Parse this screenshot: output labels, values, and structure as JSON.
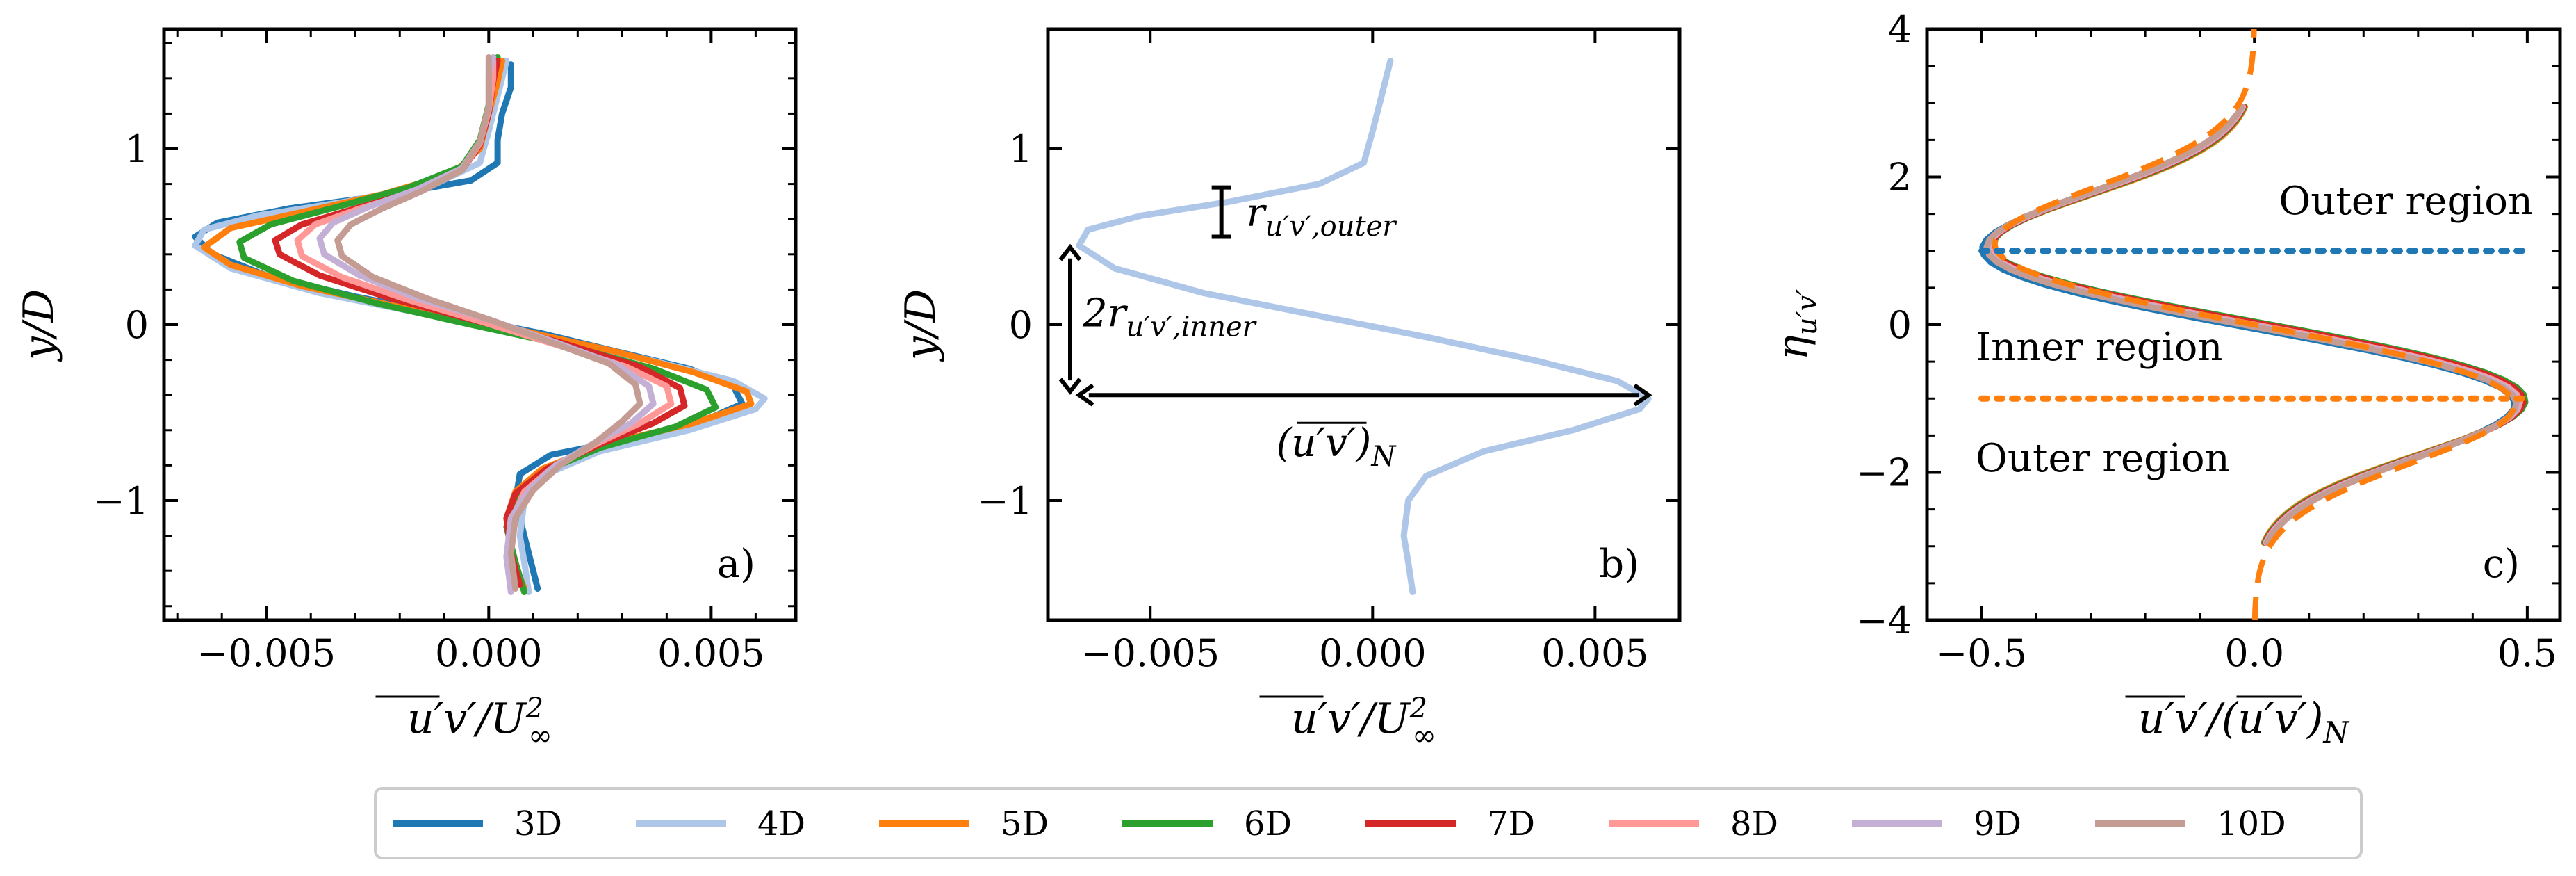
{
  "chart_data": [
    {
      "type": "line",
      "panel_label": "a)",
      "xlabel": "u'v' / U∞²",
      "ylabel": "y/D",
      "xlim": [
        -0.0073,
        0.0069
      ],
      "ylim": [
        -1.68,
        1.68
      ],
      "xticks": [
        -0.005,
        0.0,
        0.005
      ],
      "xtick_labels": [
        "−0.005",
        "0.000",
        "0.005"
      ],
      "yticks": [
        -1,
        0,
        1
      ],
      "ytick_labels": [
        "−1",
        "0",
        "1"
      ],
      "grid": false,
      "legend": "bottom-outside",
      "series": [
        {
          "name": "3D",
          "color": "#1f77b4",
          "points": [
            [
              0.0011,
              -1.5
            ],
            [
              0.0009,
              -1.3
            ],
            [
              0.0006,
              -1.0
            ],
            [
              0.0007,
              -0.85
            ],
            [
              0.0014,
              -0.74
            ],
            [
              0.0032,
              -0.65
            ],
            [
              0.0048,
              -0.55
            ],
            [
              0.0057,
              -0.45
            ],
            [
              0.0055,
              -0.35
            ],
            [
              0.0045,
              -0.25
            ],
            [
              0.003,
              -0.16
            ],
            [
              0.0012,
              -0.05
            ],
            [
              -0.0008,
              0.05
            ],
            [
              -0.003,
              0.16
            ],
            [
              -0.005,
              0.28
            ],
            [
              -0.0062,
              0.4
            ],
            [
              -0.0066,
              0.5
            ],
            [
              -0.0061,
              0.58
            ],
            [
              -0.0045,
              0.66
            ],
            [
              -0.0022,
              0.74
            ],
            [
              -0.0004,
              0.82
            ],
            [
              0.0002,
              0.92
            ],
            [
              0.0002,
              1.05
            ],
            [
              0.0003,
              1.2
            ],
            [
              0.0005,
              1.35
            ],
            [
              0.0005,
              1.48
            ]
          ]
        },
        {
          "name": "4D",
          "color": "#aec7e8",
          "points": [
            [
              0.0009,
              -1.52
            ],
            [
              0.0008,
              -1.35
            ],
            [
              0.0007,
              -1.2
            ],
            [
              0.0008,
              -1.0
            ],
            [
              0.0012,
              -0.86
            ],
            [
              0.0025,
              -0.72
            ],
            [
              0.0045,
              -0.6
            ],
            [
              0.006,
              -0.48
            ],
            [
              0.0062,
              -0.42
            ],
            [
              0.0055,
              -0.32
            ],
            [
              0.0036,
              -0.2
            ],
            [
              0.0012,
              -0.07
            ],
            [
              -0.0012,
              0.05
            ],
            [
              -0.0038,
              0.18
            ],
            [
              -0.0058,
              0.32
            ],
            [
              -0.0066,
              0.45
            ],
            [
              -0.0064,
              0.54
            ],
            [
              -0.0052,
              0.62
            ],
            [
              -0.0032,
              0.7
            ],
            [
              -0.0012,
              0.8
            ],
            [
              -0.0002,
              0.92
            ],
            [
              0.0,
              1.1
            ],
            [
              0.0002,
              1.3
            ],
            [
              0.0004,
              1.5
            ]
          ]
        },
        {
          "name": "5D",
          "color": "#ff7f0e",
          "points": [
            [
              0.0008,
              -1.5
            ],
            [
              0.0005,
              -1.3
            ],
            [
              0.0004,
              -1.1
            ],
            [
              0.0006,
              -0.95
            ],
            [
              0.0012,
              -0.82
            ],
            [
              0.0026,
              -0.68
            ],
            [
              0.0046,
              -0.56
            ],
            [
              0.0059,
              -0.45
            ],
            [
              0.0058,
              -0.38
            ],
            [
              0.0046,
              -0.27
            ],
            [
              0.0028,
              -0.15
            ],
            [
              0.0005,
              -0.02
            ],
            [
              -0.002,
              0.1
            ],
            [
              -0.0042,
              0.22
            ],
            [
              -0.0058,
              0.34
            ],
            [
              -0.0064,
              0.44
            ],
            [
              -0.0058,
              0.55
            ],
            [
              -0.0042,
              0.64
            ],
            [
              -0.0024,
              0.74
            ],
            [
              -0.0008,
              0.86
            ],
            [
              -0.0002,
              1.0
            ],
            [
              0.0,
              1.2
            ],
            [
              0.0002,
              1.38
            ],
            [
              0.0003,
              1.5
            ]
          ]
        },
        {
          "name": "6D",
          "color": "#2ca02c",
          "points": [
            [
              0.0008,
              -1.52
            ],
            [
              0.0006,
              -1.35
            ],
            [
              0.0004,
              -1.15
            ],
            [
              0.0006,
              -0.98
            ],
            [
              0.0012,
              -0.84
            ],
            [
              0.0025,
              -0.7
            ],
            [
              0.0042,
              -0.58
            ],
            [
              0.0051,
              -0.47
            ],
            [
              0.0049,
              -0.37
            ],
            [
              0.0037,
              -0.25
            ],
            [
              0.0018,
              -0.12
            ],
            [
              -0.0004,
              0.0
            ],
            [
              -0.0025,
              0.12
            ],
            [
              -0.0044,
              0.25
            ],
            [
              -0.0055,
              0.38
            ],
            [
              -0.0056,
              0.47
            ],
            [
              -0.0049,
              0.57
            ],
            [
              -0.0034,
              0.67
            ],
            [
              -0.0018,
              0.78
            ],
            [
              -0.0006,
              0.9
            ],
            [
              -0.0002,
              1.05
            ],
            [
              0.0,
              1.25
            ],
            [
              0.0001,
              1.42
            ],
            [
              0.0002,
              1.52
            ]
          ]
        },
        {
          "name": "7D",
          "color": "#d62728",
          "points": [
            [
              0.0007,
              -1.48
            ],
            [
              0.0005,
              -1.3
            ],
            [
              0.0004,
              -1.1
            ],
            [
              0.0006,
              -0.96
            ],
            [
              0.0013,
              -0.82
            ],
            [
              0.0025,
              -0.68
            ],
            [
              0.0037,
              -0.56
            ],
            [
              0.0044,
              -0.46
            ],
            [
              0.0043,
              -0.36
            ],
            [
              0.0034,
              -0.24
            ],
            [
              0.0016,
              -0.1
            ],
            [
              -0.0004,
              0.03
            ],
            [
              -0.0022,
              0.15
            ],
            [
              -0.0038,
              0.28
            ],
            [
              -0.0047,
              0.4
            ],
            [
              -0.0048,
              0.48
            ],
            [
              -0.0042,
              0.57
            ],
            [
              -0.003,
              0.66
            ],
            [
              -0.0016,
              0.76
            ],
            [
              -0.0006,
              0.88
            ],
            [
              -0.0002,
              1.02
            ],
            [
              0.0,
              1.2
            ],
            [
              0.0001,
              1.38
            ],
            [
              0.0002,
              1.5
            ]
          ]
        },
        {
          "name": "8D",
          "color": "#ff9896",
          "points": [
            [
              0.0005,
              -1.5
            ],
            [
              0.0004,
              -1.32
            ],
            [
              0.0005,
              -1.12
            ],
            [
              0.0008,
              -0.95
            ],
            [
              0.0014,
              -0.82
            ],
            [
              0.0024,
              -0.68
            ],
            [
              0.0034,
              -0.56
            ],
            [
              0.0041,
              -0.45
            ],
            [
              0.004,
              -0.35
            ],
            [
              0.0031,
              -0.24
            ],
            [
              0.0016,
              -0.12
            ],
            [
              -0.0002,
              0.02
            ],
            [
              -0.0018,
              0.14
            ],
            [
              -0.0033,
              0.27
            ],
            [
              -0.0042,
              0.39
            ],
            [
              -0.0043,
              0.48
            ],
            [
              -0.0039,
              0.57
            ],
            [
              -0.0029,
              0.66
            ],
            [
              -0.0016,
              0.76
            ],
            [
              -0.0006,
              0.88
            ],
            [
              -0.0002,
              1.03
            ],
            [
              0.0,
              1.22
            ],
            [
              0.0001,
              1.4
            ],
            [
              0.0001,
              1.5
            ]
          ]
        },
        {
          "name": "9D",
          "color": "#c5b0d5",
          "points": [
            [
              0.0005,
              -1.52
            ],
            [
              0.0004,
              -1.32
            ],
            [
              0.0005,
              -1.1
            ],
            [
              0.0009,
              -0.94
            ],
            [
              0.0015,
              -0.8
            ],
            [
              0.0024,
              -0.67
            ],
            [
              0.0032,
              -0.56
            ],
            [
              0.0037,
              -0.45
            ],
            [
              0.0036,
              -0.35
            ],
            [
              0.0029,
              -0.23
            ],
            [
              0.0015,
              -0.1
            ],
            [
              0.0,
              0.03
            ],
            [
              -0.0016,
              0.15
            ],
            [
              -0.0029,
              0.28
            ],
            [
              -0.0037,
              0.4
            ],
            [
              -0.0038,
              0.49
            ],
            [
              -0.0035,
              0.58
            ],
            [
              -0.0027,
              0.67
            ],
            [
              -0.0016,
              0.77
            ],
            [
              -0.0006,
              0.89
            ],
            [
              -0.0002,
              1.04
            ],
            [
              0.0,
              1.24
            ],
            [
              0.0,
              1.42
            ],
            [
              0.0001,
              1.52
            ]
          ]
        },
        {
          "name": "10D",
          "color": "#c49c94",
          "points": [
            [
              0.0006,
              -1.5
            ],
            [
              0.0005,
              -1.3
            ],
            [
              0.0006,
              -1.1
            ],
            [
              0.001,
              -0.94
            ],
            [
              0.0016,
              -0.8
            ],
            [
              0.0024,
              -0.67
            ],
            [
              0.003,
              -0.55
            ],
            [
              0.0034,
              -0.45
            ],
            [
              0.0033,
              -0.34
            ],
            [
              0.0027,
              -0.22
            ],
            [
              0.0014,
              -0.1
            ],
            [
              0.0,
              0.03
            ],
            [
              -0.0014,
              0.15
            ],
            [
              -0.0026,
              0.27
            ],
            [
              -0.0033,
              0.39
            ],
            [
              -0.0034,
              0.48
            ],
            [
              -0.0031,
              0.57
            ],
            [
              -0.0024,
              0.66
            ],
            [
              -0.0015,
              0.76
            ],
            [
              -0.0006,
              0.88
            ],
            [
              -0.0002,
              1.04
            ],
            [
              0.0,
              1.24
            ],
            [
              0.0,
              1.42
            ],
            [
              0.0,
              1.52
            ]
          ]
        }
      ]
    },
    {
      "type": "line",
      "panel_label": "b)",
      "xlabel": "u'v' / U∞²",
      "ylabel": "y/D",
      "xlim": [
        -0.0073,
        0.0069
      ],
      "ylim": [
        -1.68,
        1.68
      ],
      "xticks": [
        -0.005,
        0.0,
        0.005
      ],
      "xtick_labels": [
        "−0.005",
        "0.000",
        "0.005"
      ],
      "yticks": [
        -1,
        0,
        1
      ],
      "ytick_labels": [
        "−1",
        "0",
        "1"
      ],
      "grid": false,
      "series": [
        {
          "name": "4D",
          "color": "#aec7e8",
          "points": [
            [
              0.0009,
              -1.52
            ],
            [
              0.0008,
              -1.35
            ],
            [
              0.0007,
              -1.2
            ],
            [
              0.0008,
              -1.0
            ],
            [
              0.0012,
              -0.86
            ],
            [
              0.0025,
              -0.72
            ],
            [
              0.0045,
              -0.6
            ],
            [
              0.006,
              -0.48
            ],
            [
              0.0062,
              -0.42
            ],
            [
              0.0055,
              -0.32
            ],
            [
              0.0036,
              -0.2
            ],
            [
              0.0012,
              -0.07
            ],
            [
              -0.0012,
              0.05
            ],
            [
              -0.0038,
              0.18
            ],
            [
              -0.0058,
              0.32
            ],
            [
              -0.0066,
              0.45
            ],
            [
              -0.0064,
              0.54
            ],
            [
              -0.0052,
              0.62
            ],
            [
              -0.0032,
              0.7
            ],
            [
              -0.0012,
              0.8
            ],
            [
              -0.0002,
              0.92
            ],
            [
              0.0,
              1.1
            ],
            [
              0.0002,
              1.3
            ],
            [
              0.0004,
              1.5
            ]
          ]
        }
      ],
      "annotations": {
        "r_outer": {
          "label": "r",
          "sub": "u′v′,outer",
          "x": -0.0034,
          "y0": 0.5,
          "y1": 0.78
        },
        "r_inner": {
          "label": "2r",
          "sub": "u′v′,inner",
          "x": -0.0068,
          "y0": -0.38,
          "y1": 0.44
        },
        "uv_norm": {
          "label": "(u′v′)",
          "sub": "N",
          "x0": -0.0066,
          "x1": 0.0062,
          "y": -0.4
        }
      }
    },
    {
      "type": "line",
      "panel_label": "c)",
      "xlabel": "u'v' / (u'v')_N",
      "ylabel": "η_u'v'",
      "xlim": [
        -0.6,
        0.56
      ],
      "ylim": [
        -4,
        4
      ],
      "xticks": [
        -0.5,
        0.0,
        0.5
      ],
      "xtick_labels": [
        "−0.5",
        "0.0",
        "0.5"
      ],
      "yticks": [
        -4,
        -2,
        0,
        2,
        4
      ],
      "ytick_labels": [
        "−4",
        "−2",
        "0",
        "2",
        "4"
      ],
      "grid": false,
      "region_lines": [
        {
          "y": 1.0,
          "color": "#1f77b4"
        },
        {
          "y": -1.0,
          "color": "#ff7f0e"
        }
      ],
      "region_labels": [
        "Outer region",
        "Inner region",
        "Outer region"
      ],
      "fit_color": "#ff7f0e",
      "series_names": [
        "3D",
        "4D",
        "5D",
        "6D",
        "7D",
        "8D",
        "9D",
        "10D"
      ],
      "series_colors": [
        "#1f77b4",
        "#aec7e8",
        "#ff7f0e",
        "#2ca02c",
        "#d62728",
        "#ff9896",
        "#c5b0d5",
        "#c49c94"
      ]
    }
  ],
  "legend": {
    "entries": [
      {
        "label": "3D",
        "color": "#1f77b4"
      },
      {
        "label": "4D",
        "color": "#aec7e8"
      },
      {
        "label": "5D",
        "color": "#ff7f0e"
      },
      {
        "label": "6D",
        "color": "#2ca02c"
      },
      {
        "label": "7D",
        "color": "#d62728"
      },
      {
        "label": "8D",
        "color": "#ff9896"
      },
      {
        "label": "9D",
        "color": "#c5b0d5"
      },
      {
        "label": "10D",
        "color": "#c49c94"
      }
    ]
  },
  "text": {
    "region_outer_top": "Outer region",
    "region_inner": "Inner region",
    "region_outer_bottom": "Outer region"
  }
}
